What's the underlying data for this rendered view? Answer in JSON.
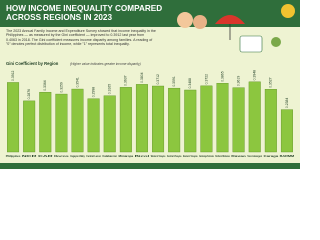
{
  "chart_data": {
    "type": "bar",
    "title": "HOW INCOME INEQUALITY COMPARED ACROSS REGIONS IN 2023",
    "subtitle": "The 2023 Annual Family Income and Expenditure Survey showed that income inequality in the Philippines — as measured by the Gini coefficient — improved to 0.3912 last year from 0.4063 in 2018. The Gini coefficient measures income disparity among families. A reading of \"0\" denotes perfect distribution of income, while \"1\" represents total inequality.",
    "y_label": "Gini Coefficient by Region",
    "note": "(Higher value indicates greater income disparity)",
    "categories": [
      "Philippines",
      "NCR",
      "CAR",
      "Ilocos",
      "Cagayan Valley",
      "Central Luzon",
      "Calabarzon",
      "Mimaropa",
      "Bicol",
      "Western Visayas",
      "Central Visayas",
      "Eastern Visayas",
      "Zamboanga Peninsula",
      "Northern Mindanao",
      "Davao",
      "Soccsksargen",
      "Caraga",
      "BARMM"
    ],
    "values": [
      0.3912,
      0.2876,
      0.3364,
      0.3259,
      0.3541,
      0.2998,
      0.3165,
      0.3637,
      0.3804,
      0.3712,
      0.3591,
      0.3488,
      0.3722,
      0.3865,
      0.3619,
      0.3948,
      0.3527,
      0.2384
    ],
    "color": "#8cc63f",
    "ylim": [
      0,
      0.45
    ]
  }
}
